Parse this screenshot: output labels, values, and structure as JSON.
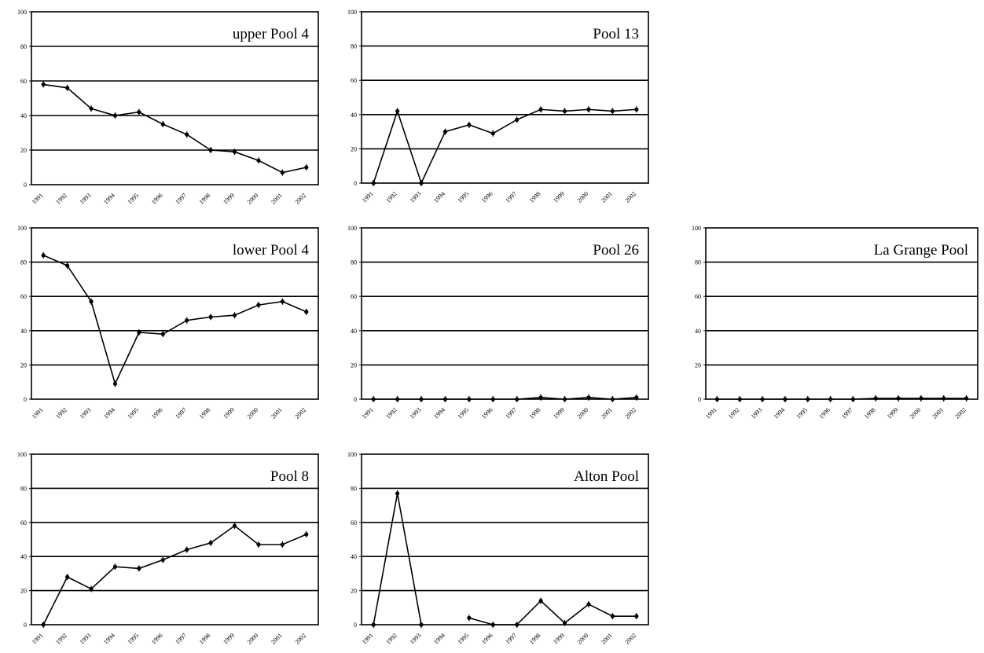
{
  "chart_data": [
    {
      "type": "line",
      "title": "upper Pool 4",
      "x": [
        "1991",
        "1992",
        "1993",
        "1994",
        "1995",
        "1996",
        "1997",
        "1998",
        "1999",
        "2000",
        "2001",
        "2002"
      ],
      "ylim": [
        0,
        100
      ],
      "yticks": [
        "0",
        "20",
        "40",
        "60",
        "80",
        "100"
      ],
      "grid": true,
      "series": [
        {
          "values": [
            58,
            56,
            44,
            40,
            42,
            35,
            29,
            20,
            19,
            14,
            7,
            10
          ]
        }
      ]
    },
    {
      "type": "line",
      "title": "Pool 13",
      "x": [
        "1991",
        "1992",
        "1993",
        "1994",
        "1995",
        "1996",
        "1997",
        "1998",
        "1999",
        "2000",
        "2001",
        "2002"
      ],
      "ylim": [
        0,
        100
      ],
      "yticks": [
        "0",
        "20",
        "40",
        "60",
        "80",
        "100"
      ],
      "grid": true,
      "series": [
        {
          "values": [
            0,
            42,
            0,
            30,
            34,
            29,
            37,
            43,
            42,
            43,
            42,
            43
          ]
        }
      ]
    },
    {
      "type": "line",
      "title": "lower Pool 4",
      "x": [
        "1991",
        "1992",
        "1993",
        "1994",
        "1995",
        "1996",
        "1997",
        "1998",
        "1999",
        "2000",
        "2001",
        "2002"
      ],
      "ylim": [
        0,
        100
      ],
      "yticks": [
        "0",
        "20",
        "40",
        "60",
        "80",
        "100"
      ],
      "grid": true,
      "series": [
        {
          "values": [
            84,
            78,
            57,
            9,
            39,
            38,
            46,
            48,
            49,
            55,
            57,
            51
          ]
        }
      ]
    },
    {
      "type": "line",
      "title": "Pool 26",
      "x": [
        "1991",
        "1992",
        "1993",
        "1994",
        "1995",
        "1996",
        "1997",
        "1998",
        "1999",
        "2000",
        "2001",
        "2002"
      ],
      "ylim": [
        0,
        100
      ],
      "yticks": [
        "0",
        "20",
        "40",
        "60",
        "80",
        "100"
      ],
      "grid": true,
      "series": [
        {
          "values": [
            0,
            0,
            0,
            0,
            0,
            0,
            0,
            1,
            0,
            1,
            0,
            1
          ]
        }
      ]
    },
    {
      "type": "line",
      "title": "La Grange Pool",
      "x": [
        "1991",
        "1992",
        "1993",
        "1994",
        "1995",
        "1996",
        "1997",
        "1998",
        "1999",
        "2000",
        "2001",
        "2002"
      ],
      "ylim": [
        0,
        100
      ],
      "yticks": [
        "0",
        "20",
        "40",
        "60",
        "80",
        "100"
      ],
      "grid": true,
      "series": [
        {
          "values": [
            0,
            0,
            0,
            0,
            0,
            0,
            0,
            0.5,
            0.5,
            0.5,
            0.5,
            0.5
          ]
        }
      ]
    },
    {
      "type": "line",
      "title": "Pool 8",
      "x": [
        "1991",
        "1992",
        "1993",
        "1994",
        "1995",
        "1996",
        "1997",
        "1998",
        "1999",
        "2000",
        "2001",
        "2002"
      ],
      "ylim": [
        0,
        100
      ],
      "yticks": [
        "0",
        "20",
        "40",
        "60",
        "80",
        "100"
      ],
      "grid": true,
      "series": [
        {
          "values": [
            0,
            28,
            21,
            34,
            33,
            38,
            44,
            48,
            58,
            47,
            47,
            53
          ]
        }
      ]
    },
    {
      "type": "line",
      "title": "Alton Pool",
      "x": [
        "1991",
        "1992",
        "1993",
        "1994",
        "1995",
        "1996",
        "1997",
        "1998",
        "1999",
        "2000",
        "2001",
        "2002"
      ],
      "ylim": [
        0,
        100
      ],
      "yticks": [
        "0",
        "20",
        "40",
        "60",
        "80",
        "100"
      ],
      "grid": true,
      "series": [
        {
          "values": [
            0,
            77,
            0,
            null,
            4,
            0,
            0,
            14,
            1,
            12,
            5,
            5
          ]
        }
      ]
    }
  ]
}
